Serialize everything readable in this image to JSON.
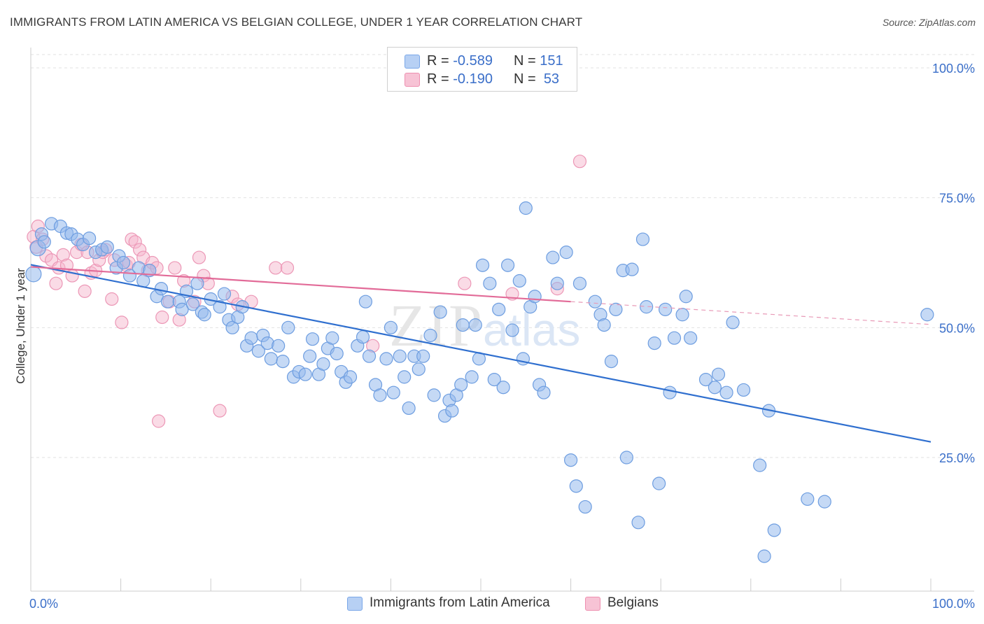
{
  "title": "IMMIGRANTS FROM LATIN AMERICA VS BELGIAN COLLEGE, UNDER 1 YEAR CORRELATION CHART",
  "source": "Source: ZipAtlas.com",
  "watermark": "ZIPatlas",
  "legend": {
    "r_label": "R =",
    "n_label": "N =",
    "series": [
      {
        "name": "Immigrants from Latin America",
        "r": "-0.589",
        "n": "151",
        "color": "#7aa7e8",
        "fill": "#b7d0f4"
      },
      {
        "name": "Belgians",
        "r": "-0.190",
        "n": "53",
        "color": "#ee8fb0",
        "fill": "#f7c3d5"
      }
    ]
  },
  "chart_data": {
    "type": "scatter",
    "title": "IMMIGRANTS FROM LATIN AMERICA VS BELGIAN COLLEGE, UNDER 1 YEAR CORRELATION CHART",
    "xlabel": "",
    "ylabel": "College, Under 1 year",
    "xlim": [
      0,
      100
    ],
    "ylim": [
      0,
      102
    ],
    "x_tick_labels": [
      "0.0%",
      "100.0%"
    ],
    "y_tick_labels": [
      "25.0%",
      "50.0%",
      "75.0%",
      "100.0%"
    ],
    "y_ticks": [
      25,
      50,
      75,
      100
    ],
    "series": [
      {
        "name": "Immigrants from Latin America",
        "color": "#3a78d4",
        "points": [
          [
            0.3,
            60.3
          ],
          [
            0.8,
            65.3
          ],
          [
            1.2,
            68
          ],
          [
            1.5,
            66.5
          ],
          [
            2.3,
            70
          ],
          [
            3.3,
            69.5
          ],
          [
            4,
            68.2
          ],
          [
            4.5,
            68
          ],
          [
            5.2,
            67
          ],
          [
            5.8,
            66
          ],
          [
            6.5,
            67.2
          ],
          [
            7.2,
            64.5
          ],
          [
            7.9,
            65
          ],
          [
            8.5,
            65.5
          ],
          [
            9.5,
            61.5
          ],
          [
            9.8,
            63.8
          ],
          [
            10.3,
            62.5
          ],
          [
            11,
            60
          ],
          [
            12,
            61.5
          ],
          [
            12.5,
            59
          ],
          [
            13.2,
            61
          ],
          [
            14,
            56
          ],
          [
            14.5,
            57.5
          ],
          [
            15.2,
            55
          ],
          [
            16.5,
            55
          ],
          [
            16.8,
            53.5
          ],
          [
            17.3,
            57
          ],
          [
            18,
            54.5
          ],
          [
            18.5,
            58.5
          ],
          [
            19,
            53
          ],
          [
            19.3,
            52.5
          ],
          [
            20,
            55.5
          ],
          [
            21,
            54
          ],
          [
            21.5,
            56.5
          ],
          [
            22,
            51.5
          ],
          [
            22.4,
            50
          ],
          [
            23,
            52
          ],
          [
            23.5,
            54
          ],
          [
            24,
            46.5
          ],
          [
            24.5,
            48
          ],
          [
            25.3,
            45.5
          ],
          [
            25.8,
            48.5
          ],
          [
            26.3,
            47
          ],
          [
            26.7,
            44
          ],
          [
            27.5,
            46.5
          ],
          [
            28,
            43.5
          ],
          [
            28.6,
            50
          ],
          [
            29.2,
            40.5
          ],
          [
            29.8,
            41.5
          ],
          [
            30.5,
            41
          ],
          [
            31,
            44.5
          ],
          [
            31.3,
            47.8
          ],
          [
            32,
            41
          ],
          [
            32.5,
            43
          ],
          [
            33,
            46
          ],
          [
            33.5,
            48
          ],
          [
            34,
            45
          ],
          [
            34.5,
            41.5
          ],
          [
            35,
            39.5
          ],
          [
            35.5,
            40.5
          ],
          [
            36.3,
            46.5
          ],
          [
            36.9,
            48.2
          ],
          [
            37.2,
            55
          ],
          [
            37.6,
            44.5
          ],
          [
            38.3,
            39
          ],
          [
            38.8,
            37
          ],
          [
            39.5,
            44
          ],
          [
            40,
            50
          ],
          [
            40.3,
            37.5
          ],
          [
            41,
            44.5
          ],
          [
            41.5,
            40.5
          ],
          [
            42,
            34.5
          ],
          [
            42.6,
            44.5
          ],
          [
            43.1,
            42
          ],
          [
            43.6,
            44.5
          ],
          [
            44.4,
            48.5
          ],
          [
            44.8,
            37
          ],
          [
            45.5,
            53
          ],
          [
            46,
            33
          ],
          [
            46.5,
            36
          ],
          [
            46.8,
            34
          ],
          [
            47.3,
            37
          ],
          [
            47.8,
            39
          ],
          [
            48,
            50.5
          ],
          [
            49,
            40.5
          ],
          [
            49.4,
            50.5
          ],
          [
            49.8,
            44
          ],
          [
            50.2,
            62
          ],
          [
            51,
            58.5
          ],
          [
            51.5,
            40
          ],
          [
            52,
            53.5
          ],
          [
            52.5,
            38.5
          ],
          [
            53,
            62
          ],
          [
            53.5,
            49.5
          ],
          [
            54.3,
            59
          ],
          [
            54.7,
            44
          ],
          [
            55,
            73
          ],
          [
            55.5,
            54
          ],
          [
            56,
            56
          ],
          [
            56.5,
            39
          ],
          [
            57,
            37.5
          ],
          [
            58,
            63.5
          ],
          [
            58.5,
            58.5
          ],
          [
            59.5,
            64.5
          ],
          [
            60,
            24.5
          ],
          [
            60.6,
            19.5
          ],
          [
            61,
            58.5
          ],
          [
            61.6,
            15.5
          ],
          [
            62.7,
            55
          ],
          [
            63.3,
            52.5
          ],
          [
            63.7,
            50.5
          ],
          [
            64.5,
            43.5
          ],
          [
            65,
            53.5
          ],
          [
            65.8,
            61
          ],
          [
            66.2,
            25
          ],
          [
            66.8,
            61.2
          ],
          [
            67.5,
            12.5
          ],
          [
            68,
            67
          ],
          [
            68.4,
            54
          ],
          [
            69.3,
            47
          ],
          [
            69.8,
            20
          ],
          [
            70.5,
            53.5
          ],
          [
            71,
            37.5
          ],
          [
            71.5,
            48
          ],
          [
            72.4,
            52.5
          ],
          [
            72.8,
            56
          ],
          [
            73.3,
            48
          ],
          [
            75,
            40
          ],
          [
            76,
            38.5
          ],
          [
            76.4,
            41
          ],
          [
            77.3,
            37.5
          ],
          [
            78,
            51
          ],
          [
            79.2,
            38
          ],
          [
            81,
            23.5
          ],
          [
            81.5,
            6
          ],
          [
            82,
            34
          ],
          [
            82.6,
            11
          ],
          [
            86.3,
            17
          ],
          [
            88.2,
            16.5
          ],
          [
            99.6,
            52.5
          ]
        ]
      },
      {
        "name": "Belgians",
        "color": "#e77fa5",
        "points": [
          [
            0.3,
            67.5
          ],
          [
            0.6,
            65.5
          ],
          [
            0.8,
            69.5
          ],
          [
            1.3,
            67
          ],
          [
            1.7,
            63.8
          ],
          [
            2.3,
            63
          ],
          [
            2.8,
            58.5
          ],
          [
            3.1,
            61.5
          ],
          [
            3.6,
            64
          ],
          [
            4,
            62
          ],
          [
            4.6,
            60
          ],
          [
            5.1,
            64.5
          ],
          [
            5.6,
            66
          ],
          [
            6,
            57
          ],
          [
            6.3,
            64.5
          ],
          [
            6.7,
            60.5
          ],
          [
            7.2,
            61
          ],
          [
            7.6,
            63
          ],
          [
            8,
            64.5
          ],
          [
            8.3,
            65
          ],
          [
            9,
            55.5
          ],
          [
            9.3,
            63
          ],
          [
            10.1,
            51
          ],
          [
            10.6,
            62
          ],
          [
            10.9,
            62.5
          ],
          [
            11.2,
            67
          ],
          [
            11.6,
            66.5
          ],
          [
            12.1,
            65
          ],
          [
            12.5,
            63.5
          ],
          [
            13,
            61
          ],
          [
            13.5,
            62.5
          ],
          [
            14,
            61.5
          ],
          [
            14.2,
            32
          ],
          [
            14.6,
            52
          ],
          [
            15.4,
            55
          ],
          [
            16,
            61.5
          ],
          [
            16.5,
            51.5
          ],
          [
            17,
            59
          ],
          [
            18.2,
            55
          ],
          [
            18.7,
            63.5
          ],
          [
            19.2,
            60
          ],
          [
            19.7,
            58.5
          ],
          [
            21,
            34
          ],
          [
            22.4,
            56
          ],
          [
            23,
            54.5
          ],
          [
            24.5,
            55
          ],
          [
            27.2,
            61.5
          ],
          [
            28.5,
            61.5
          ],
          [
            38,
            46.5
          ],
          [
            48.2,
            58.5
          ],
          [
            53.5,
            56.5
          ],
          [
            58.5,
            57.5
          ],
          [
            61,
            82
          ]
        ]
      }
    ],
    "trendlines": [
      {
        "series": "Immigrants from Latin America",
        "x1": 0,
        "y1": 62.1,
        "x2": 100,
        "y2": 28
      },
      {
        "series": "Belgians",
        "x1": 0,
        "y1": 61.7,
        "x2": 60,
        "y2": 55,
        "dashed_to": [
          100,
          50.6
        ]
      }
    ],
    "grid": true,
    "legend_position": "top-center"
  }
}
